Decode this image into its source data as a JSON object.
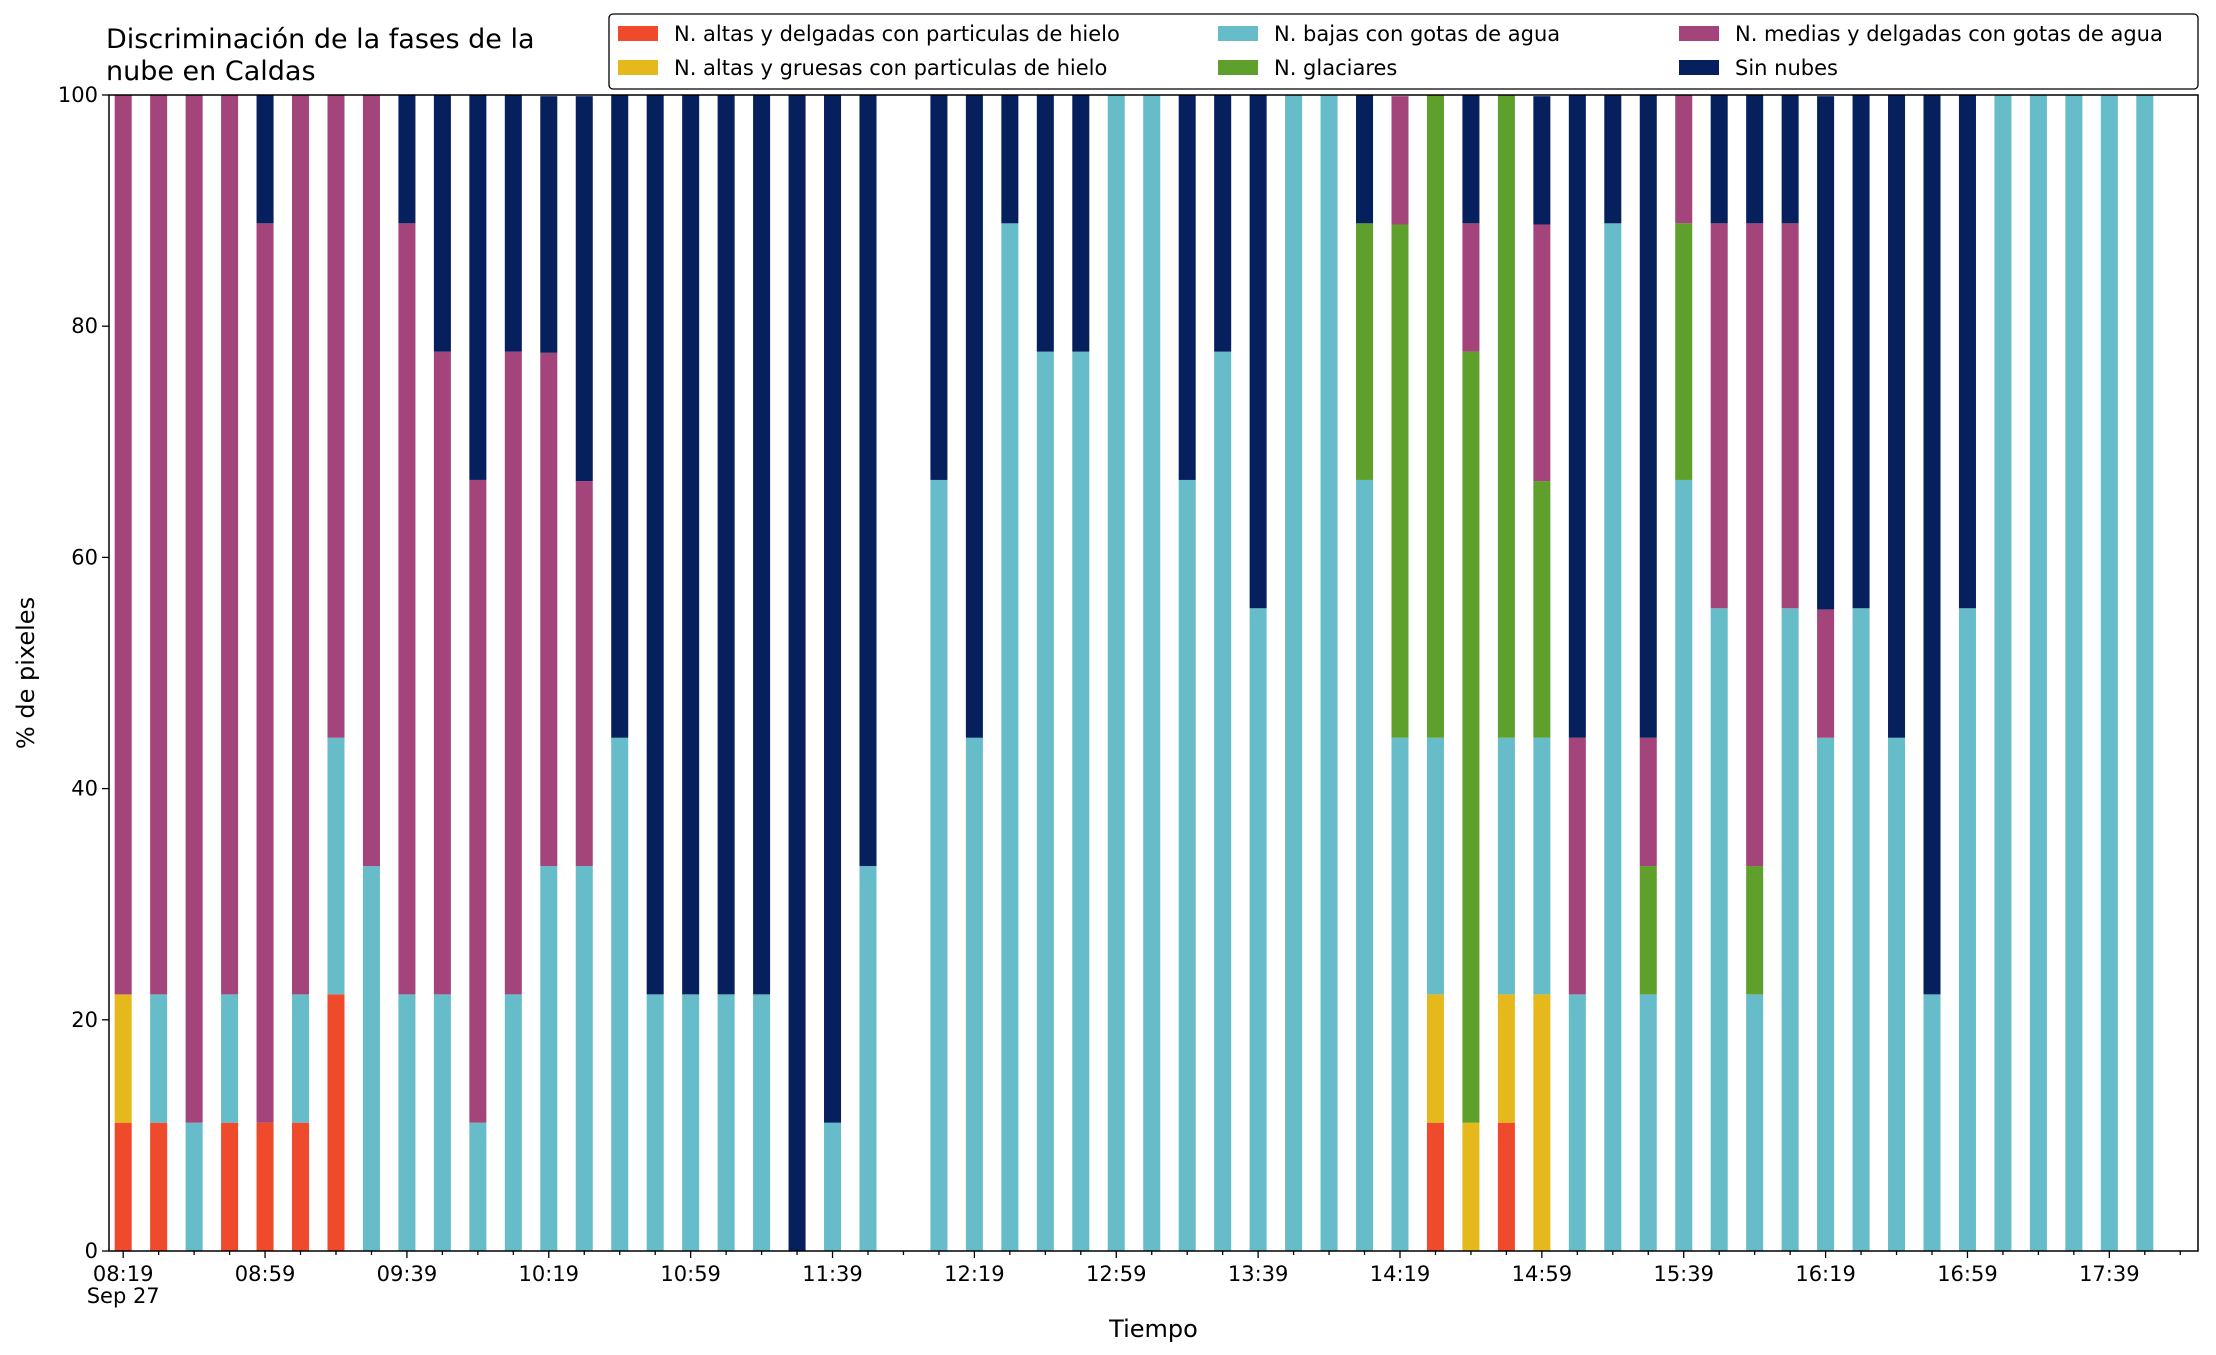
{
  "chart_data": {
    "type": "stacked_bar",
    "title": "Discriminación de la fases de la\nnube en Caldas",
    "xlabel": "Tiempo",
    "ylabel": "% de pixeles",
    "date_label": "Sep 27",
    "categories": [
      "08:19",
      null,
      null,
      null,
      "08:59",
      null,
      null,
      null,
      "09:39",
      null,
      null,
      null,
      "10:19",
      null,
      null,
      null,
      "10:59",
      null,
      null,
      null,
      "11:39",
      null,
      null,
      null,
      "12:19",
      null,
      null,
      null,
      "12:59",
      null,
      null,
      null,
      "13:39",
      null,
      null,
      null,
      "14:19",
      null,
      null,
      null,
      "14:59",
      null,
      null,
      null,
      "15:39",
      null,
      null,
      null,
      "16:19",
      null,
      null,
      null,
      "16:59",
      null,
      null,
      null,
      "17:39",
      null
    ],
    "ylim": [
      0,
      100
    ],
    "yticks": [
      0,
      20,
      40,
      60,
      80,
      100
    ],
    "grid": false,
    "series": [
      {
        "name": "N. altas y delgadas con particulas de hielo",
        "color": "#ee4a2b",
        "values": [
          11.1,
          11.1,
          0,
          11.1,
          11.1,
          11.1,
          22.2,
          0,
          0,
          0,
          0,
          0,
          0,
          0,
          0,
          0,
          0,
          0,
          0,
          0,
          0,
          0,
          null,
          0,
          0,
          0,
          0,
          0,
          0,
          0,
          0,
          0,
          0,
          0,
          0,
          0,
          0,
          11.1,
          0,
          11.1,
          0,
          0,
          0,
          0,
          0,
          0,
          0,
          0,
          0,
          0,
          0,
          0,
          0,
          0,
          0,
          0,
          0,
          0
        ]
      },
      {
        "name": "N. altas y gruesas con particulas de hielo",
        "color": "#e5b81b",
        "values": [
          11.1,
          0,
          0,
          0,
          0,
          0,
          0,
          0,
          0,
          0,
          0,
          0,
          0,
          0,
          0,
          0,
          0,
          0,
          0,
          0,
          0,
          0,
          null,
          0,
          0,
          0,
          0,
          0,
          0,
          0,
          0,
          0,
          0,
          0,
          0,
          0,
          0,
          11.1,
          11.1,
          11.1,
          22.2,
          0,
          0,
          0,
          0,
          0,
          0,
          0,
          0,
          0,
          0,
          0,
          0,
          0,
          0,
          0,
          0,
          0
        ]
      },
      {
        "name": "N. bajas con gotas de agua",
        "color": "#66bdc9",
        "values": [
          0,
          11.1,
          11.1,
          11.1,
          0,
          11.1,
          22.2,
          33.3,
          22.2,
          22.2,
          11.1,
          22.2,
          33.3,
          33.3,
          44.4,
          22.2,
          22.2,
          22.2,
          22.2,
          0,
          11.1,
          33.3,
          null,
          66.7,
          44.4,
          88.9,
          77.8,
          77.8,
          100,
          100,
          66.7,
          77.8,
          55.6,
          100,
          100,
          66.7,
          44.4,
          22.2,
          0,
          22.2,
          22.2,
          22.2,
          88.9,
          22.2,
          66.7,
          55.6,
          22.2,
          55.6,
          44.4,
          55.6,
          44.4,
          22.2,
          55.6,
          100,
          100,
          100,
          100,
          100
        ]
      },
      {
        "name": "N. glaciares",
        "color": "#5fa02c",
        "values": [
          0,
          0,
          0,
          0,
          0,
          0,
          0,
          0,
          0,
          0,
          0,
          0,
          0,
          0,
          0,
          0,
          0,
          0,
          0,
          0,
          0,
          0,
          null,
          0,
          0,
          0,
          0,
          0,
          0,
          0,
          0,
          0,
          0,
          0,
          0,
          22.2,
          44.4,
          55.6,
          66.7,
          55.6,
          22.2,
          0,
          0,
          11.1,
          22.2,
          0,
          11.1,
          0,
          0,
          0,
          0,
          0,
          0,
          0,
          0,
          0,
          0,
          0
        ]
      },
      {
        "name": "N. medias y delgadas con gotas de agua",
        "color": "#a3457a",
        "values": [
          77.8,
          77.8,
          88.9,
          77.8,
          77.8,
          77.8,
          55.6,
          66.7,
          66.7,
          55.6,
          55.6,
          55.6,
          44.4,
          33.3,
          0,
          0,
          0,
          0,
          0,
          0,
          0,
          0,
          null,
          0,
          0,
          0,
          0,
          0,
          0,
          0,
          0,
          0,
          0,
          0,
          0,
          0,
          11.1,
          0,
          11.1,
          0,
          22.2,
          22.2,
          0,
          11.1,
          11.1,
          33.3,
          55.6,
          33.3,
          11.1,
          0,
          0,
          0,
          0,
          0,
          0,
          0,
          0,
          0
        ]
      },
      {
        "name": "Sin nubes",
        "color": "#06205e",
        "values": [
          0,
          0,
          0,
          0,
          11.1,
          0,
          0,
          0,
          11.1,
          22.2,
          33.3,
          22.2,
          22.2,
          33.3,
          55.6,
          77.8,
          77.8,
          77.8,
          77.8,
          100,
          88.9,
          66.7,
          null,
          33.3,
          55.6,
          11.1,
          22.2,
          22.2,
          0,
          0,
          33.3,
          22.2,
          44.4,
          0,
          0,
          11.1,
          0,
          0,
          11.1,
          0,
          11.1,
          55.6,
          11.1,
          55.6,
          0,
          11.1,
          11.1,
          11.1,
          44.4,
          44.4,
          55.6,
          77.8,
          44.4,
          0,
          0,
          0,
          0,
          0
        ]
      }
    ]
  }
}
